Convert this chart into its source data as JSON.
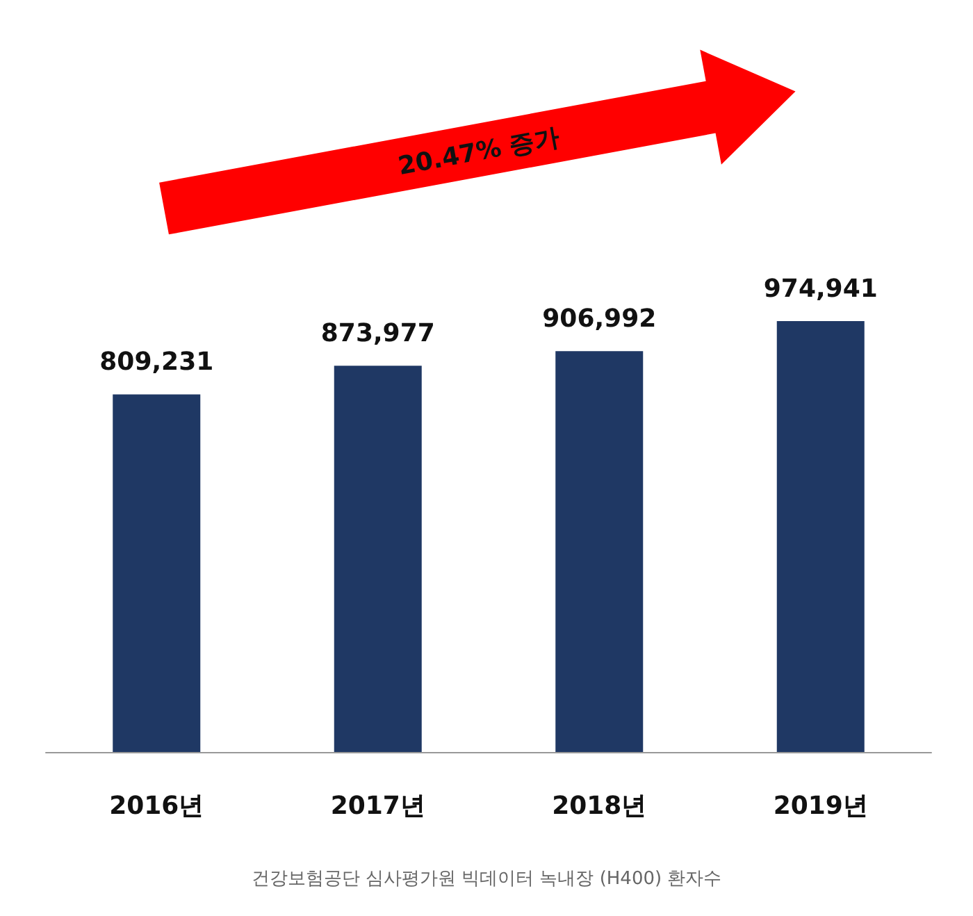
{
  "chart_data": {
    "type": "bar",
    "categories": [
      "2016년",
      "2017년",
      "2018년",
      "2019년"
    ],
    "values": [
      809231,
      873977,
      906992,
      974941
    ],
    "value_labels": [
      "809,231",
      "873,977",
      "906,992",
      "974,941"
    ],
    "color": "#1f3864",
    "annotations": [
      "20.47% 증가",
      "건강보험공단 심사평가원 빅데이터 녹내장 (H400) 환자수"
    ]
  }
}
